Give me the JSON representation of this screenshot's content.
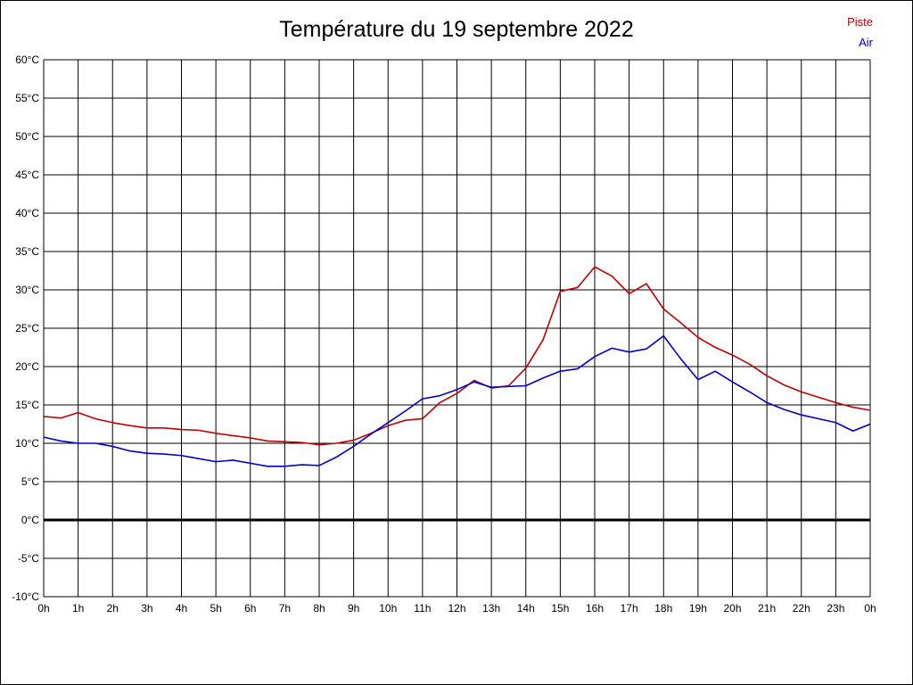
{
  "title": "Température du 19 septembre 2022",
  "legend": [
    {
      "label": "Piste",
      "color": "#c00000"
    },
    {
      "label": "Air",
      "color": "#0000cc"
    }
  ],
  "chart_data": {
    "type": "line",
    "title": "Température du 19 septembre 2022",
    "xlabel": "",
    "ylabel": "",
    "xlim": [
      0,
      24
    ],
    "ylim": [
      -10,
      60
    ],
    "grid": true,
    "zero_line": true,
    "legend_position": "top-right",
    "xticks": [
      {
        "v": 0,
        "label": "0h"
      },
      {
        "v": 1,
        "label": "1h"
      },
      {
        "v": 2,
        "label": "2h"
      },
      {
        "v": 3,
        "label": "3h"
      },
      {
        "v": 4,
        "label": "4h"
      },
      {
        "v": 5,
        "label": "5h"
      },
      {
        "v": 6,
        "label": "6h"
      },
      {
        "v": 7,
        "label": "7h"
      },
      {
        "v": 8,
        "label": "8h"
      },
      {
        "v": 9,
        "label": "9h"
      },
      {
        "v": 10,
        "label": "10h"
      },
      {
        "v": 11,
        "label": "11h"
      },
      {
        "v": 12,
        "label": "12h"
      },
      {
        "v": 13,
        "label": "13h"
      },
      {
        "v": 14,
        "label": "14h"
      },
      {
        "v": 15,
        "label": "15h"
      },
      {
        "v": 16,
        "label": "16h"
      },
      {
        "v": 17,
        "label": "17h"
      },
      {
        "v": 18,
        "label": "18h"
      },
      {
        "v": 19,
        "label": "19h"
      },
      {
        "v": 20,
        "label": "20h"
      },
      {
        "v": 21,
        "label": "21h"
      },
      {
        "v": 22,
        "label": "22h"
      },
      {
        "v": 23,
        "label": "23h"
      },
      {
        "v": 24,
        "label": "0h"
      }
    ],
    "yticks": [
      {
        "v": 60,
        "label": "60°C"
      },
      {
        "v": 55,
        "label": "55°C"
      },
      {
        "v": 50,
        "label": "50°C"
      },
      {
        "v": 45,
        "label": "45°C"
      },
      {
        "v": 40,
        "label": "40°C"
      },
      {
        "v": 35,
        "label": "35°C"
      },
      {
        "v": 30,
        "label": "30°C"
      },
      {
        "v": 25,
        "label": "25°C"
      },
      {
        "v": 20,
        "label": "20°C"
      },
      {
        "v": 15,
        "label": "15°C"
      },
      {
        "v": 10,
        "label": "10°C"
      },
      {
        "v": 5,
        "label": "5°C"
      },
      {
        "v": 0,
        "label": "0°C"
      },
      {
        "v": -5,
        "label": "-5°C"
      },
      {
        "v": -10,
        "label": "-10°C"
      }
    ],
    "x": [
      0,
      0.5,
      1,
      1.5,
      2,
      2.5,
      3,
      3.5,
      4,
      4.5,
      5,
      5.5,
      6,
      6.5,
      7,
      7.5,
      8,
      8.5,
      9,
      9.5,
      10,
      10.5,
      11,
      11.5,
      12,
      12.5,
      13,
      13.5,
      14,
      14.5,
      15,
      15.5,
      16,
      16.5,
      17,
      17.5,
      18,
      18.5,
      19,
      19.5,
      20,
      20.5,
      21,
      21.5,
      22,
      22.5,
      23,
      23.5,
      24
    ],
    "series": [
      {
        "name": "Piste",
        "color": "#c00000",
        "values": [
          13.5,
          13.3,
          14.0,
          13.2,
          12.7,
          12.3,
          12.0,
          12.0,
          11.8,
          11.7,
          11.3,
          11.0,
          10.7,
          10.3,
          10.2,
          10.1,
          9.8,
          10.0,
          10.4,
          11.3,
          12.3,
          13.0,
          13.2,
          15.3,
          16.5,
          18.2,
          17.2,
          17.5,
          19.8,
          23.5,
          29.8,
          30.3,
          33.0,
          31.8,
          29.5,
          30.8,
          27.5,
          25.7,
          23.8,
          22.5,
          21.5,
          20.3,
          18.8,
          17.6,
          16.7,
          16.0,
          15.3,
          14.7,
          14.3
        ]
      },
      {
        "name": "Air",
        "color": "#0000cc",
        "values": [
          10.8,
          10.3,
          10.0,
          10.0,
          9.6,
          9.0,
          8.7,
          8.6,
          8.4,
          8.0,
          7.6,
          7.8,
          7.4,
          7.0,
          7.0,
          7.2,
          7.1,
          8.2,
          9.6,
          11.2,
          12.7,
          14.2,
          15.8,
          16.2,
          17.0,
          18.0,
          17.3,
          17.4,
          17.5,
          18.5,
          19.4,
          19.7,
          21.3,
          22.4,
          21.9,
          22.3,
          24.0,
          21.0,
          18.3,
          19.4,
          18.0,
          16.7,
          15.3,
          14.4,
          13.7,
          13.2,
          12.7,
          11.6,
          12.5
        ]
      }
    ]
  }
}
